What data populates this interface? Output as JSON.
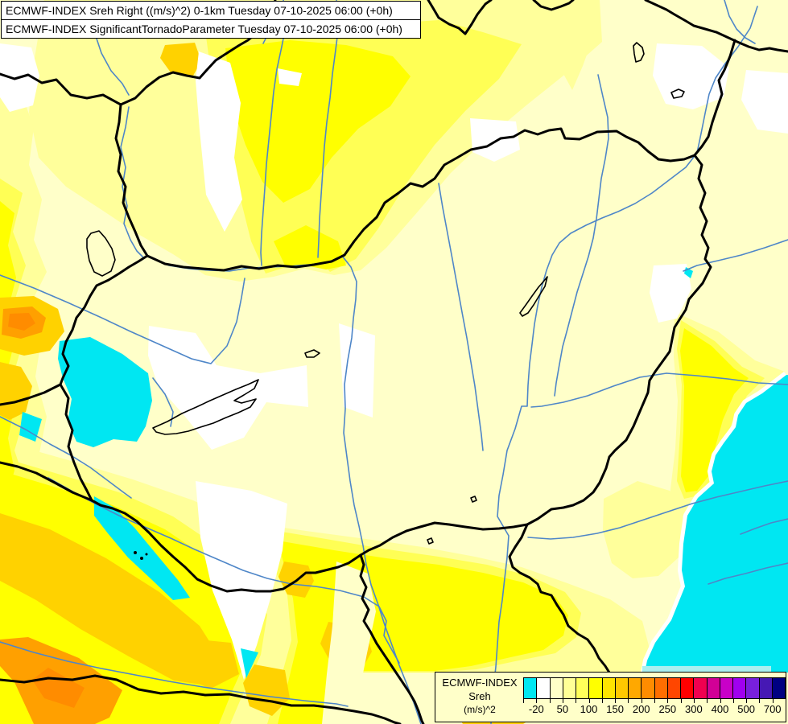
{
  "title_bar": {
    "line1": "ECMWF-INDEX Sreh Right ((m/s)^2) 0-1km Tuesday 07-10-2025 06:00 (+0h)",
    "line2": "ECMWF-INDEX SignificantTornadoParameter Tuesday 07-10-2025 06:00 (+0h)"
  },
  "legend": {
    "model": "ECMWF-INDEX",
    "parameter": "Sreh",
    "unit": "(m/s)^2",
    "tick_labels": [
      "-20",
      "50",
      "100",
      "150",
      "200",
      "250",
      "300",
      "400",
      "500",
      "700"
    ],
    "colors": [
      "#00E7F2",
      "#FFFFFF",
      "#FFFFC8",
      "#FFFF96",
      "#FFFF5A",
      "#FFFF00",
      "#FFE400",
      "#FFC800",
      "#FFA800",
      "#FF8C00",
      "#FF6E00",
      "#FF4600",
      "#FF0000",
      "#F00050",
      "#D20096",
      "#C800C8",
      "#A000F0",
      "#7820DC",
      "#4618B4",
      "#000082"
    ]
  },
  "map": {
    "palette": {
      "background_cream": "#FFFFC9",
      "light_yellow": "#FFFF9B",
      "yellow": "#FFFF55",
      "bright_yellow": "#FFFF00",
      "gold": "#FFD200",
      "orange": "#FFA000",
      "deep_orange": "#FF8C00",
      "negative_cyan": "#00E7F2",
      "white_zone": "#FFFFFF",
      "river_blue": "#4E86C8",
      "border_black": "#000000"
    },
    "features": [
      "country-borders",
      "rivers",
      "lakes",
      "helicity-contour-fills"
    ]
  }
}
